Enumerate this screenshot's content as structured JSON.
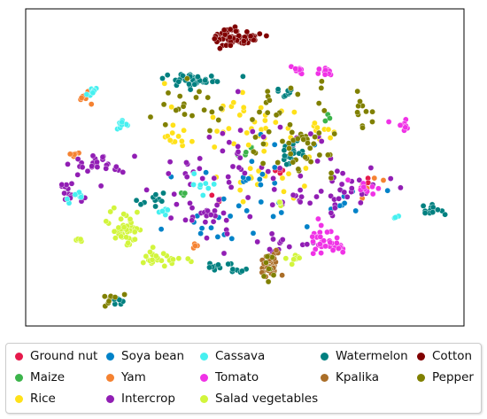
{
  "chart_data": {
    "type": "scatter",
    "title": "",
    "xlabel": "",
    "ylabel": "",
    "axes_ticks": "none",
    "grid": false,
    "legend_placement": "bottom",
    "legend_columns": 5,
    "series": [
      {
        "name": "Ground nut",
        "color": "#e6194b",
        "clusters": [
          [
            0.58,
            0.5,
            0.01,
            0.01,
            4
          ],
          [
            0.43,
            0.4,
            0.01,
            0.01,
            3
          ],
          [
            0.78,
            0.45,
            0.01,
            0.01,
            3
          ]
        ]
      },
      {
        "name": "Maize",
        "color": "#3cb44b",
        "clusters": [
          [
            0.51,
            0.55,
            0.015,
            0.015,
            5
          ],
          [
            0.35,
            0.42,
            0.01,
            0.01,
            3
          ],
          [
            0.7,
            0.66,
            0.01,
            0.01,
            3
          ]
        ]
      },
      {
        "name": "Rice",
        "color": "#ffe119",
        "clusters": [
          [
            0.48,
            0.66,
            0.07,
            0.06,
            35
          ],
          [
            0.55,
            0.45,
            0.05,
            0.05,
            20
          ],
          [
            0.33,
            0.6,
            0.02,
            0.02,
            10
          ],
          [
            0.7,
            0.62,
            0.03,
            0.02,
            10
          ]
        ]
      },
      {
        "name": "Soya bean",
        "color": "#0082c8",
        "clusters": [
          [
            0.5,
            0.45,
            0.08,
            0.08,
            25
          ],
          [
            0.4,
            0.3,
            0.04,
            0.03,
            10
          ],
          [
            0.74,
            0.4,
            0.03,
            0.03,
            10
          ]
        ]
      },
      {
        "name": "Yam",
        "color": "#f58231",
        "clusters": [
          [
            0.13,
            0.73,
            0.01,
            0.008,
            8
          ],
          [
            0.1,
            0.54,
            0.008,
            0.008,
            6
          ],
          [
            0.38,
            0.24,
            0.008,
            0.008,
            4
          ],
          [
            0.8,
            0.45,
            0.02,
            0.02,
            6
          ]
        ]
      },
      {
        "name": "Intercrop",
        "color": "#911eb4",
        "clusters": [
          [
            0.5,
            0.48,
            0.12,
            0.1,
            70
          ],
          [
            0.15,
            0.51,
            0.03,
            0.015,
            25
          ],
          [
            0.09,
            0.42,
            0.015,
            0.02,
            15
          ],
          [
            0.74,
            0.42,
            0.05,
            0.04,
            30
          ],
          [
            0.58,
            0.25,
            0.05,
            0.04,
            15
          ],
          [
            0.4,
            0.35,
            0.04,
            0.03,
            15
          ]
        ]
      },
      {
        "name": "Cassava",
        "color": "#46f0f0",
        "clusters": [
          [
            0.14,
            0.75,
            0.008,
            0.008,
            8
          ],
          [
            0.21,
            0.64,
            0.01,
            0.008,
            10
          ],
          [
            0.1,
            0.4,
            0.02,
            0.01,
            8
          ],
          [
            0.39,
            0.44,
            0.02,
            0.015,
            8
          ],
          [
            0.31,
            0.36,
            0.01,
            0.01,
            6
          ],
          [
            0.86,
            0.34,
            0.005,
            0.005,
            3
          ]
        ]
      },
      {
        "name": "Tomato",
        "color": "#f032e6",
        "clusters": [
          [
            0.7,
            0.26,
            0.025,
            0.025,
            35
          ],
          [
            0.63,
            0.82,
            0.008,
            0.008,
            10
          ],
          [
            0.69,
            0.81,
            0.01,
            0.008,
            12
          ],
          [
            0.78,
            0.43,
            0.02,
            0.015,
            10
          ],
          [
            0.88,
            0.64,
            0.015,
            0.01,
            10
          ]
        ]
      },
      {
        "name": "Salad vegetables",
        "color": "#d2f53c",
        "clusters": [
          [
            0.22,
            0.3,
            0.02,
            0.03,
            45
          ],
          [
            0.3,
            0.2,
            0.025,
            0.012,
            25
          ],
          [
            0.11,
            0.26,
            0.005,
            0.005,
            5
          ],
          [
            0.58,
            0.38,
            0.005,
            0.005,
            4
          ],
          [
            0.62,
            0.2,
            0.008,
            0.012,
            8
          ]
        ]
      },
      {
        "name": "Watermelon",
        "color": "#008080",
        "clusters": [
          [
            0.38,
            0.79,
            0.04,
            0.01,
            40
          ],
          [
            0.61,
            0.55,
            0.015,
            0.02,
            18
          ],
          [
            0.94,
            0.36,
            0.015,
            0.01,
            12
          ],
          [
            0.45,
            0.17,
            0.025,
            0.008,
            15
          ],
          [
            0.2,
            0.06,
            0.01,
            0.006,
            8
          ],
          [
            0.28,
            0.39,
            0.02,
            0.01,
            10
          ],
          [
            0.6,
            0.74,
            0.015,
            0.01,
            8
          ]
        ]
      },
      {
        "name": "Kpalika",
        "color": "#aa6e28",
        "clusters": [
          [
            0.56,
            0.18,
            0.012,
            0.03,
            30
          ]
        ]
      },
      {
        "name": "Cotton",
        "color": "#800000",
        "clusters": [
          [
            0.48,
            0.93,
            0.025,
            0.015,
            65
          ]
        ]
      },
      {
        "name": "Pepper",
        "color": "#808000",
        "clusters": [
          [
            0.62,
            0.62,
            0.07,
            0.08,
            55
          ],
          [
            0.37,
            0.69,
            0.04,
            0.04,
            20
          ],
          [
            0.77,
            0.68,
            0.02,
            0.03,
            10
          ],
          [
            0.19,
            0.07,
            0.02,
            0.01,
            8
          ],
          [
            0.56,
            0.17,
            0.01,
            0.03,
            8
          ]
        ]
      }
    ]
  }
}
